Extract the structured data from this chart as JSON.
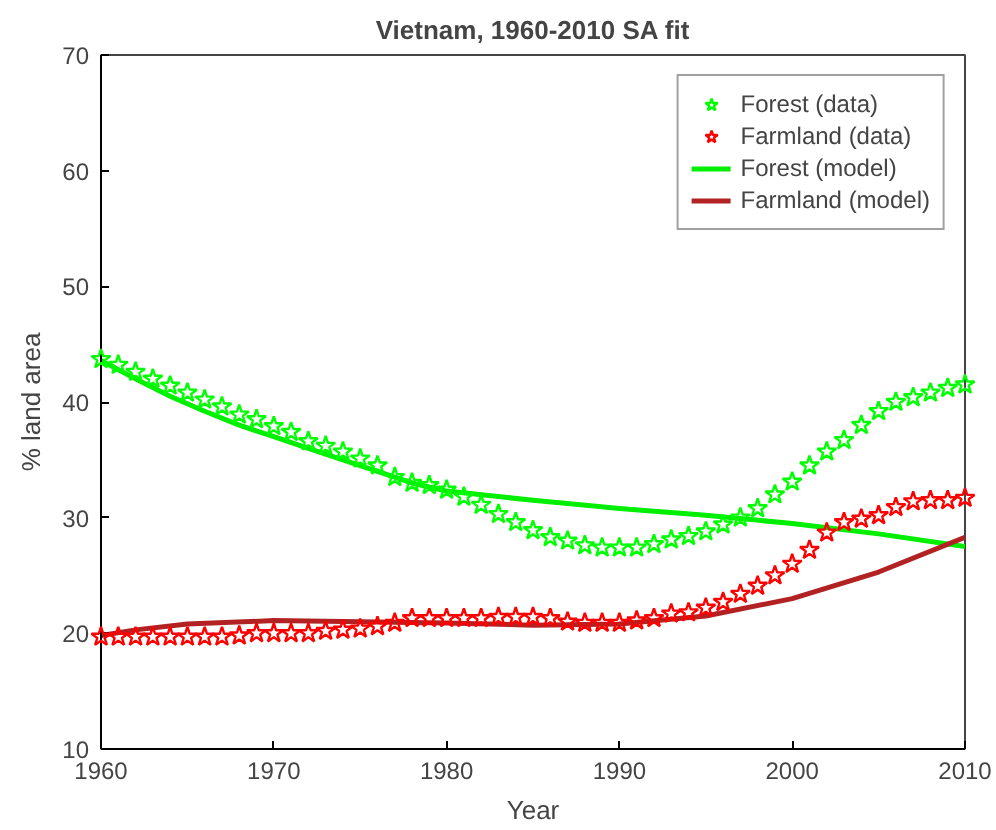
{
  "chart_data": {
    "type": "scatter",
    "title": "Vietnam, 1960-2010 SA fit",
    "xlabel": "Year",
    "ylabel": "% land area",
    "xlim": [
      1960,
      2010
    ],
    "xticks": [
      1960,
      1970,
      1980,
      1990,
      2000,
      2010
    ],
    "ylim": [
      10,
      70
    ],
    "yticks": [
      10,
      20,
      30,
      40,
      50,
      60,
      70
    ],
    "grid": false,
    "legend": "top right",
    "series": [
      {
        "name": "Forest (data)",
        "marker": "star",
        "color": "#00ff00",
        "x": [
          1960,
          1961,
          1962,
          1963,
          1964,
          1965,
          1966,
          1967,
          1968,
          1969,
          1970,
          1971,
          1972,
          1973,
          1974,
          1975,
          1976,
          1977,
          1978,
          1979,
          1980,
          1981,
          1982,
          1983,
          1984,
          1985,
          1986,
          1987,
          1988,
          1989,
          1990,
          1991,
          1992,
          1993,
          1994,
          1995,
          1996,
          1997,
          1998,
          1999,
          2000,
          2001,
          2002,
          2003,
          2004,
          2005,
          2006,
          2007,
          2008,
          2009,
          2010
        ],
        "values": [
          43.7,
          43.2,
          42.6,
          42.0,
          41.4,
          40.8,
          40.2,
          39.6,
          38.9,
          38.5,
          37.9,
          37.4,
          36.6,
          36.2,
          35.7,
          35.1,
          34.5,
          33.5,
          33.0,
          32.8,
          32.4,
          31.8,
          31.1,
          30.3,
          29.6,
          28.9,
          28.3,
          28.0,
          27.6,
          27.4,
          27.4,
          27.4,
          27.7,
          28.1,
          28.4,
          28.8,
          29.4,
          30.0,
          30.8,
          32.0,
          33.1,
          34.5,
          35.7,
          36.7,
          38.0,
          39.2,
          40.0,
          40.4,
          40.8,
          41.2,
          41.5
        ]
      },
      {
        "name": "Farmland (data)",
        "marker": "star",
        "color": "#ff0000",
        "x": [
          1960,
          1961,
          1962,
          1963,
          1964,
          1965,
          1966,
          1967,
          1968,
          1969,
          1970,
          1971,
          1972,
          1973,
          1974,
          1975,
          1976,
          1977,
          1978,
          1979,
          1980,
          1981,
          1982,
          1983,
          1984,
          1985,
          1986,
          1987,
          1988,
          1989,
          1990,
          1991,
          1992,
          1993,
          1994,
          1995,
          1996,
          1997,
          1998,
          1999,
          2000,
          2001,
          2002,
          2003,
          2004,
          2005,
          2006,
          2007,
          2008,
          2009,
          2010
        ],
        "values": [
          19.7,
          19.7,
          19.7,
          19.7,
          19.7,
          19.7,
          19.7,
          19.7,
          19.8,
          20.0,
          20.0,
          20.0,
          20.0,
          20.2,
          20.3,
          20.4,
          20.6,
          20.9,
          21.3,
          21.3,
          21.3,
          21.3,
          21.3,
          21.4,
          21.4,
          21.4,
          21.3,
          21.0,
          20.9,
          20.9,
          20.9,
          21.1,
          21.3,
          21.7,
          21.8,
          22.2,
          22.7,
          23.4,
          24.1,
          25.0,
          26.0,
          27.2,
          28.7,
          29.6,
          29.9,
          30.2,
          30.9,
          31.4,
          31.5,
          31.5,
          31.7
        ]
      },
      {
        "name": "Forest (model)",
        "type": "line",
        "color": "#00ee00",
        "x": [
          1960,
          1962,
          1964,
          1966,
          1968,
          1970,
          1972,
          1974,
          1976,
          1978,
          1980,
          1985,
          1990,
          1995,
          2000,
          2005,
          2010
        ],
        "values": [
          43.6,
          42.0,
          40.5,
          39.2,
          38.0,
          37.0,
          36.0,
          35.0,
          34.0,
          33.0,
          32.3,
          31.5,
          30.8,
          30.2,
          29.5,
          28.6,
          27.5
        ]
      },
      {
        "name": "Farmland (model)",
        "type": "line",
        "color": "#b22222",
        "x": [
          1960,
          1962,
          1965,
          1970,
          1975,
          1980,
          1985,
          1990,
          1995,
          2000,
          2005,
          2010
        ],
        "values": [
          19.8,
          20.3,
          20.8,
          21.1,
          21.0,
          20.9,
          20.7,
          20.8,
          21.5,
          23.0,
          25.3,
          28.3
        ]
      }
    ]
  }
}
